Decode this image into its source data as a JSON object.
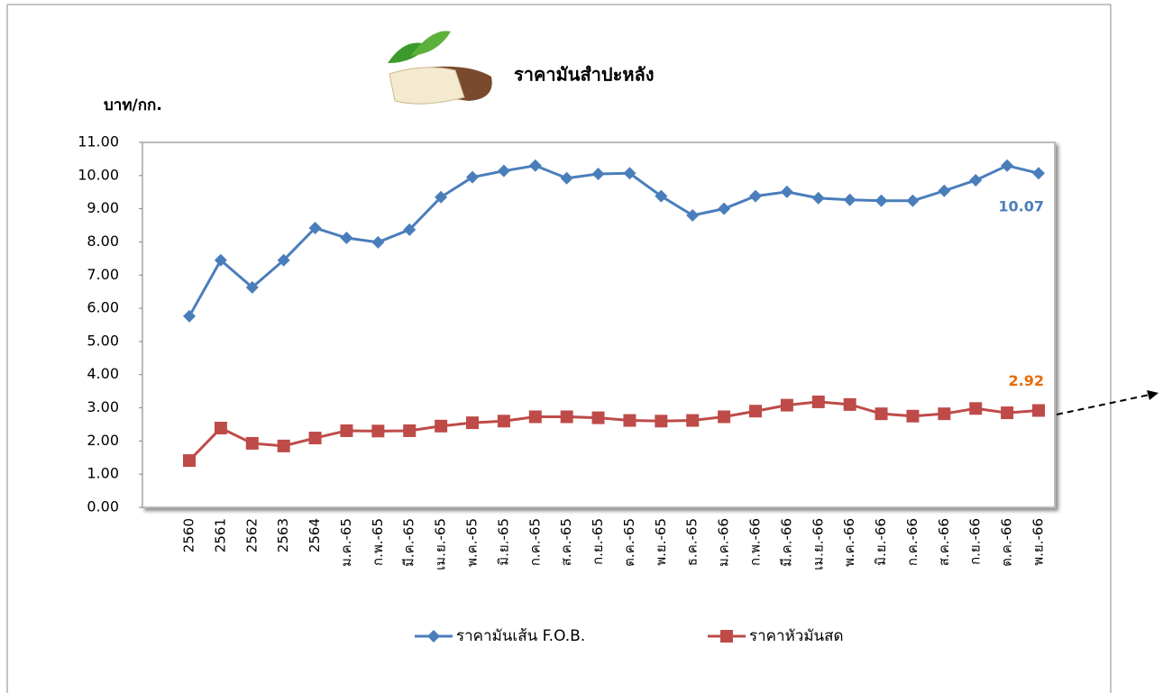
{
  "chart_data": {
    "type": "line",
    "title": "ราคามันสำปะหลัง",
    "y_label": "บาท/กก.",
    "categories": [
      "2560",
      "2561",
      "2562",
      "2563",
      "2564",
      "ม.ค.-65",
      "ก.พ.-65",
      "มี.ค.-65",
      "เม.ย.-65",
      "พ.ค.-65",
      "มิ.ย.-65",
      "ก.ค.-65",
      "ส.ค.-65",
      "ก.ย.-65",
      "ต.ค.-65",
      "พ.ย.-65",
      "ธ.ค.-65",
      "ม.ค.-66",
      "ก.พ.-66",
      "มี.ค.-66",
      "เม.ย.-66",
      "พ.ค.-66",
      "มิ.ย.-66",
      "ก.ค.-66",
      "ส.ค.-66",
      "ก.ย.-66",
      "ต.ค.-66",
      "พ.ย.-66"
    ],
    "series": [
      {
        "name": "ราคามันเส้น F.O.B.",
        "color": "#4a7ebb",
        "marker": "diamond",
        "values": [
          5.76,
          7.45,
          6.63,
          7.45,
          8.42,
          8.12,
          7.99,
          8.37,
          9.35,
          9.95,
          10.14,
          10.3,
          9.92,
          10.05,
          10.07,
          9.38,
          8.8,
          9.0,
          9.38,
          9.51,
          9.32,
          9.27,
          9.24,
          9.24,
          9.54,
          9.86,
          10.3,
          10.07
        ]
      },
      {
        "name": "ราคาหัวมันสด",
        "color": "#be4b48",
        "marker": "square",
        "values": [
          1.41,
          2.39,
          1.93,
          1.85,
          2.09,
          2.31,
          2.3,
          2.31,
          2.45,
          2.55,
          2.6,
          2.73,
          2.73,
          2.7,
          2.62,
          2.6,
          2.62,
          2.73,
          2.9,
          3.08,
          3.18,
          3.1,
          2.82,
          2.75,
          2.82,
          2.98,
          2.85,
          2.92
        ]
      }
    ],
    "ylim": [
      0,
      11
    ],
    "yticks": [
      {
        "value": 0,
        "label": "0.00"
      },
      {
        "value": 1,
        "label": "1.00"
      },
      {
        "value": 2,
        "label": "2.00"
      },
      {
        "value": 3,
        "label": "3.00"
      },
      {
        "value": 4,
        "label": "4.00"
      },
      {
        "value": 5,
        "label": "5.00"
      },
      {
        "value": 6,
        "label": "6.00"
      },
      {
        "value": 7,
        "label": "7.00"
      },
      {
        "value": 8,
        "label": "8.00"
      },
      {
        "value": 9,
        "label": "9.00"
      },
      {
        "value": 10,
        "label": "10.00"
      },
      {
        "value": 11,
        "label": "11.00"
      }
    ],
    "legend": "bottom"
  }
}
